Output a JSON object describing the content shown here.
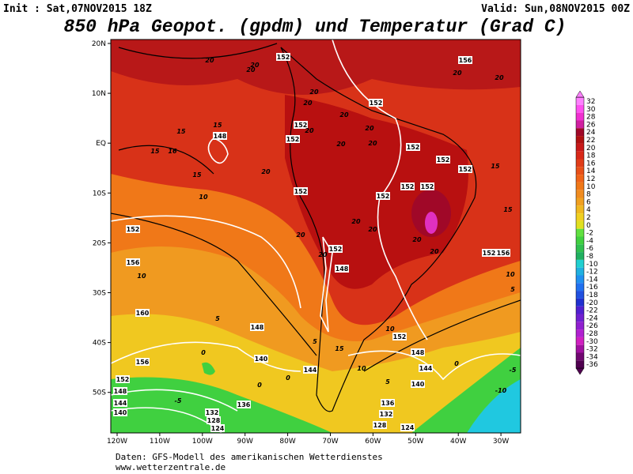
{
  "header": {
    "init": "Init : Sat,07NOV2015 18Z",
    "valid": "Valid: Sun,08NOV2015 00Z",
    "title": "850 hPa Geopot. (gpdm) und Temperatur (Grad C)"
  },
  "map": {
    "lon_ticks": [
      "120W",
      "110W",
      "100W",
      "90W",
      "80W",
      "70W",
      "60W",
      "50W",
      "40W",
      "30W"
    ],
    "lat_ticks": [
      "20N",
      "10N",
      "EQ",
      "10S",
      "20S",
      "30S",
      "40S",
      "50S"
    ],
    "geopotential_labels": [
      152,
      156,
      152,
      148,
      152,
      152,
      152,
      152,
      152,
      152,
      152,
      152,
      152,
      152,
      156,
      160,
      148,
      152,
      148,
      144,
      156,
      140,
      144,
      152,
      148,
      144,
      140,
      136,
      132,
      128,
      124,
      136,
      132,
      128,
      124,
      140,
      156,
      152,
      148,
      152
    ],
    "temperature_labels": [
      20,
      20,
      20,
      20,
      20,
      20,
      20,
      20,
      20,
      20,
      20,
      20,
      15,
      15,
      15,
      16,
      20,
      15,
      15,
      10,
      15,
      20,
      20,
      20,
      20,
      20,
      20,
      10,
      10,
      5,
      5,
      5,
      15,
      10,
      10,
      5,
      0,
      0,
      -5,
      0,
      -5,
      -10,
      0
    ]
  },
  "colorbar": {
    "levels": [
      32,
      30,
      28,
      26,
      24,
      22,
      20,
      18,
      16,
      14,
      12,
      10,
      8,
      6,
      4,
      2,
      0,
      -2,
      -4,
      -6,
      -8,
      -10,
      -12,
      -14,
      -16,
      -18,
      -20,
      -22,
      -24,
      -26,
      -28,
      -30,
      -32,
      -34,
      -36
    ],
    "colors": [
      "#ff80ff",
      "#ff50f0",
      "#f030d0",
      "#d020a0",
      "#a00828",
      "#b01010",
      "#c81818",
      "#d82818",
      "#e03c18",
      "#e85018",
      "#f06418",
      "#f07818",
      "#f08c20",
      "#f0a020",
      "#f0b820",
      "#f0d020",
      "#e0e020",
      "#60e040",
      "#40d040",
      "#30c050",
      "#20b060",
      "#20d0d0",
      "#20b0e0",
      "#2090f0",
      "#2070f0",
      "#2050e0",
      "#2030d0",
      "#5020d0",
      "#7020d0",
      "#9020d0",
      "#b020d0",
      "#d020c0",
      "#a010a0",
      "#700870",
      "#500050"
    ]
  },
  "footer": {
    "line1": "Daten: GFS-Modell des amerikanischen Wetterdienstes",
    "line2": "www.wetterzentrale.de"
  }
}
